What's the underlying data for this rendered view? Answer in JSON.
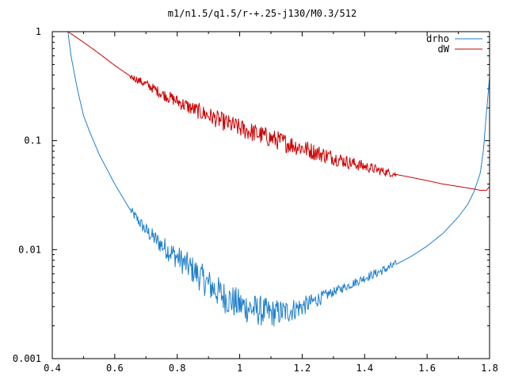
{
  "chart_data": {
    "type": "line",
    "title": "m1/n1.5/q1.5/r-+.25-j130/M0.3/512",
    "xlabel": "",
    "ylabel": "",
    "xlim": [
      0.4,
      1.8
    ],
    "ylim": [
      0.001,
      1
    ],
    "yscale": "log",
    "grid": false,
    "legend_position": "top-right",
    "x_ticks": [
      0.4,
      0.6,
      0.8,
      1.0,
      1.2,
      1.4,
      1.6,
      1.8
    ],
    "x_tick_labels": [
      "0.4",
      "0.6",
      "0.8",
      "1",
      "1.2",
      "1.4",
      "1.6",
      "1.8"
    ],
    "y_ticks": [
      0.001,
      0.01,
      0.1,
      1
    ],
    "y_tick_labels": [
      "0.001",
      "0.01",
      "0.1",
      "1"
    ],
    "series": [
      {
        "name": "drho",
        "color": "#1f7fcc",
        "x": [
          0.45,
          0.46,
          0.48,
          0.5,
          0.52,
          0.55,
          0.6,
          0.65,
          0.7,
          0.75,
          0.8,
          0.85,
          0.9,
          0.95,
          1.0,
          1.05,
          1.1,
          1.15,
          1.2,
          1.25,
          1.3,
          1.35,
          1.4,
          1.45,
          1.5,
          1.55,
          1.6,
          1.65,
          1.7,
          1.73,
          1.75,
          1.77,
          1.78,
          1.79,
          1.8
        ],
        "values": [
          1.0,
          0.6,
          0.3,
          0.17,
          0.12,
          0.075,
          0.04,
          0.023,
          0.015,
          0.011,
          0.0085,
          0.0065,
          0.0048,
          0.0037,
          0.0031,
          0.0028,
          0.0026,
          0.0027,
          0.003,
          0.0035,
          0.0041,
          0.0047,
          0.0055,
          0.0063,
          0.0073,
          0.0087,
          0.0108,
          0.014,
          0.02,
          0.026,
          0.034,
          0.05,
          0.08,
          0.18,
          0.38
        ],
        "noise_x": [
          0.65,
          1.5
        ]
      },
      {
        "name": "dW",
        "color": "#cc0000",
        "x": [
          0.45,
          0.5,
          0.55,
          0.6,
          0.65,
          0.7,
          0.75,
          0.8,
          0.85,
          0.9,
          0.95,
          1.0,
          1.05,
          1.1,
          1.15,
          1.2,
          1.25,
          1.3,
          1.35,
          1.4,
          1.45,
          1.5,
          1.55,
          1.6,
          1.65,
          1.7,
          1.75,
          1.77,
          1.78,
          1.79,
          1.8
        ],
        "values": [
          1.0,
          0.8,
          0.63,
          0.49,
          0.39,
          0.33,
          0.27,
          0.23,
          0.195,
          0.17,
          0.148,
          0.13,
          0.117,
          0.105,
          0.095,
          0.086,
          0.077,
          0.07,
          0.063,
          0.058,
          0.053,
          0.049,
          0.046,
          0.043,
          0.04,
          0.038,
          0.036,
          0.035,
          0.035,
          0.035,
          0.038
        ],
        "noise_x": [
          0.65,
          1.5
        ]
      }
    ]
  }
}
